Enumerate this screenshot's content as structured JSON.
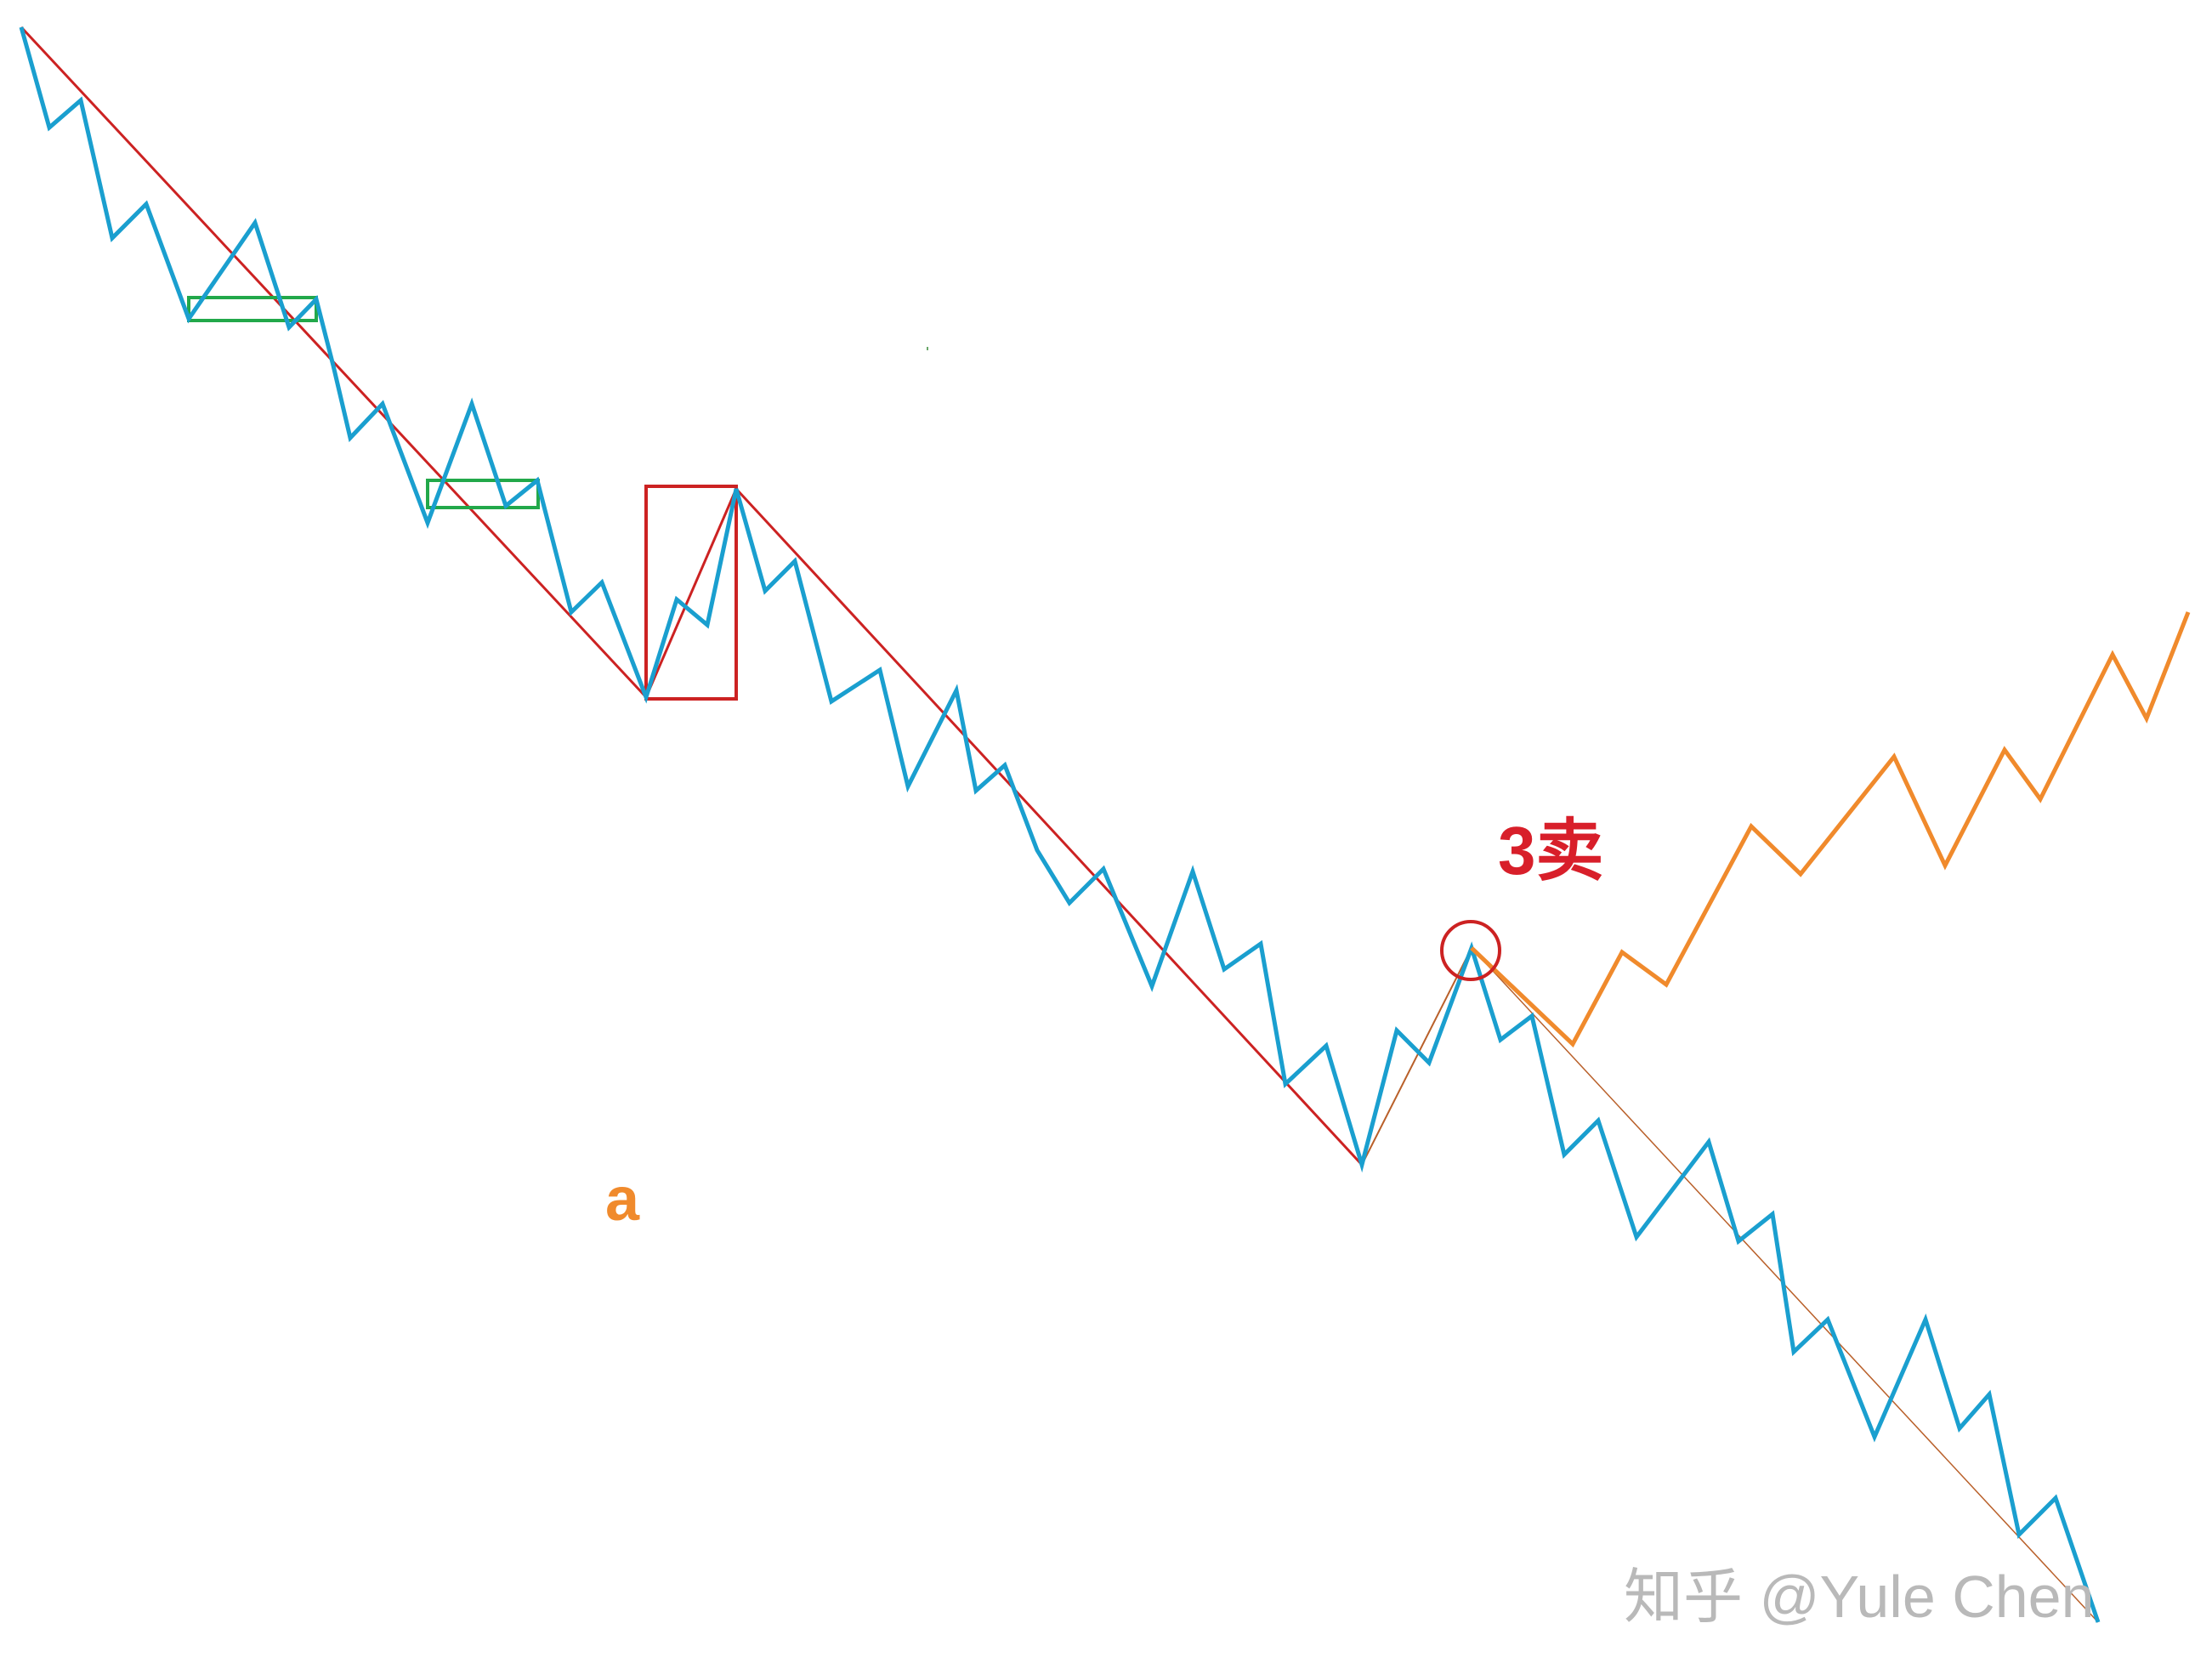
{
  "colors": {
    "price_line": "#1a9fcf",
    "trend_line": "#cc2222",
    "thin_trend_line": "#b9602a",
    "alt_path": "#f08a2c",
    "pivot_box_green": "#22a84a",
    "pivot_box_red": "#cc2222",
    "label_3sell": "#d81f2a",
    "label_a": "#f08a2c",
    "watermark": "#b9b9b9"
  },
  "labels": {
    "three_sell": "3卖",
    "a": "a",
    "watermark": "知乎 @Yule Chen"
  },
  "icons": {
    "marker": "circle"
  }
}
